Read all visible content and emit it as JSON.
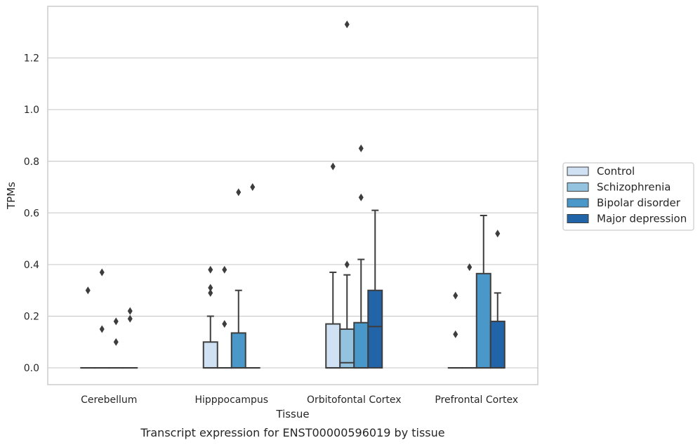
{
  "chart_data": {
    "type": "box",
    "title": "",
    "xlabel": "Tissue",
    "ylabel": "TPMs",
    "caption": "Transcript expression for ENST00000596019 by tissue",
    "ylim": [
      -0.065,
      1.4
    ],
    "yticks": [
      0.0,
      0.2,
      0.4,
      0.6,
      0.8,
      1.0,
      1.2
    ],
    "ytick_labels": [
      "0.0",
      "0.2",
      "0.4",
      "0.6",
      "0.8",
      "1.0",
      "1.2"
    ],
    "grid": "horizontal",
    "legend_position": "right",
    "categories": [
      "Cerebellum",
      "Hipppocampus",
      "Orbitofontal Cortex",
      "Prefrontal Cortex"
    ],
    "series": [
      {
        "name": "Control",
        "color": "#cfe1f2",
        "boxes": [
          {
            "q1": 0,
            "median": 0,
            "q3": 0,
            "whisker_low": 0,
            "whisker_high": 0,
            "outliers": [
              0.3
            ]
          },
          {
            "q1": 0,
            "median": 0,
            "q3": 0.1,
            "whisker_low": 0,
            "whisker_high": 0.2,
            "outliers": [
              0.38,
              0.31,
              0.29
            ]
          },
          {
            "q1": 0,
            "median": 0,
            "q3": 0.17,
            "whisker_low": 0,
            "whisker_high": 0.37,
            "outliers": [
              0.78
            ]
          },
          {
            "q1": 0,
            "median": 0,
            "q3": 0,
            "whisker_low": 0,
            "whisker_high": 0,
            "outliers": [
              0.28,
              0.13
            ]
          }
        ]
      },
      {
        "name": "Schizophrenia",
        "color": "#93c3df",
        "boxes": [
          {
            "q1": 0,
            "median": 0,
            "q3": 0,
            "whisker_low": 0,
            "whisker_high": 0,
            "outliers": [
              0.37,
              0.15
            ]
          },
          {
            "q1": 0,
            "median": 0,
            "q3": 0,
            "whisker_low": 0,
            "whisker_high": 0,
            "outliers": [
              0.38,
              0.17
            ]
          },
          {
            "q1": 0,
            "median": 0.02,
            "q3": 0.15,
            "whisker_low": 0,
            "whisker_high": 0.36,
            "outliers": [
              1.33,
              0.4
            ]
          },
          {
            "q1": 0,
            "median": 0,
            "q3": 0,
            "whisker_low": 0,
            "whisker_high": 0,
            "outliers": [
              0.39
            ]
          }
        ]
      },
      {
        "name": "Bipolar disorder",
        "color": "#4a98c9",
        "boxes": [
          {
            "q1": 0,
            "median": 0,
            "q3": 0,
            "whisker_low": 0,
            "whisker_high": 0,
            "outliers": [
              0.18,
              0.1
            ]
          },
          {
            "q1": 0,
            "median": 0,
            "q3": 0.135,
            "whisker_low": 0,
            "whisker_high": 0.3,
            "outliers": [
              0.68
            ]
          },
          {
            "q1": 0,
            "median": 0,
            "q3": 0.175,
            "whisker_low": 0,
            "whisker_high": 0.42,
            "outliers": [
              0.85,
              0.66
            ]
          },
          {
            "q1": 0,
            "median": 0,
            "q3": 0.365,
            "whisker_low": 0,
            "whisker_high": 0.59,
            "outliers": []
          }
        ]
      },
      {
        "name": "Major depression",
        "color": "#2264a8",
        "boxes": [
          {
            "q1": 0,
            "median": 0,
            "q3": 0,
            "whisker_low": 0,
            "whisker_high": 0,
            "outliers": [
              0.22,
              0.19
            ]
          },
          {
            "q1": 0,
            "median": 0,
            "q3": 0,
            "whisker_low": 0,
            "whisker_high": 0,
            "outliers": [
              0.7
            ]
          },
          {
            "q1": 0,
            "median": 0.16,
            "q3": 0.3,
            "whisker_low": 0,
            "whisker_high": 0.61,
            "outliers": []
          },
          {
            "q1": 0,
            "median": 0,
            "q3": 0.18,
            "whisker_low": 0,
            "whisker_high": 0.29,
            "outliers": [
              0.52
            ]
          }
        ]
      }
    ],
    "style": {
      "line_color": "#3d3d3d",
      "grid_color": "#cccccc",
      "frame_color": "#cccccc"
    }
  }
}
